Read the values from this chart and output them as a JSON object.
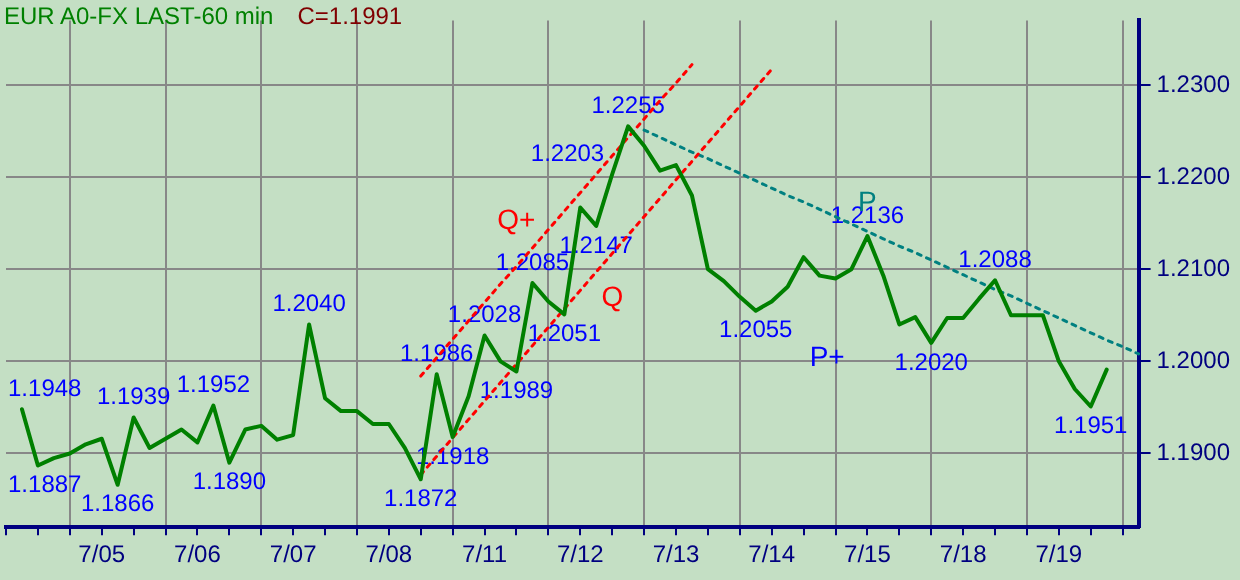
{
  "chart_data": {
    "type": "line",
    "title": "EUR A0-FX LAST-60 min",
    "subtitle": "C=1.1991",
    "categories": [
      null,
      null,
      null,
      null,
      null,
      null,
      "7/05",
      null,
      null,
      null,
      null,
      null,
      "7/06",
      null,
      null,
      null,
      null,
      null,
      "7/07",
      null,
      null,
      null,
      null,
      null,
      "7/08",
      null,
      null,
      null,
      null,
      null,
      "7/11",
      null,
      null,
      null,
      null,
      null,
      "7/12",
      null,
      null,
      null,
      null,
      null,
      "7/13",
      null,
      null,
      null,
      null,
      null,
      "7/14",
      null,
      null,
      null,
      null,
      null,
      "7/15",
      null,
      null,
      null,
      null,
      null,
      "7/18",
      null,
      null,
      null,
      null,
      null,
      "7/19",
      null,
      null,
      null,
      null,
      null
    ],
    "series": [
      {
        "type": "line",
        "color": "#008000",
        "values": [
          null,
          1.1948,
          1.1887,
          1.1895,
          1.19,
          1.191,
          1.1916,
          1.1866,
          1.1939,
          1.1906,
          1.1916,
          1.1926,
          1.1912,
          1.1952,
          1.189,
          1.1926,
          1.193,
          1.1915,
          1.192,
          1.204,
          1.196,
          1.1946,
          1.1946,
          1.1932,
          1.1932,
          1.1906,
          1.1872,
          1.1986,
          1.1918,
          1.1962,
          1.2028,
          1.2,
          1.1989,
          1.2085,
          1.2065,
          1.2051,
          1.2167,
          1.2147,
          1.2203,
          1.2255,
          1.2234,
          1.2207,
          1.2213,
          1.218,
          1.21,
          1.2087,
          1.207,
          1.2055,
          1.2065,
          1.2081,
          1.2113,
          1.2093,
          1.209,
          1.21,
          1.2136,
          1.2093,
          1.204,
          1.2048,
          1.202,
          1.2047,
          1.2047,
          1.2068,
          1.2088,
          1.205,
          1.205,
          1.205,
          1.2,
          1.197,
          1.1951,
          1.1991,
          null,
          null
        ],
        "value_labels": [
          null,
          "1.1948",
          "1.1887",
          null,
          null,
          null,
          null,
          "1.1866",
          "1.1939",
          null,
          null,
          null,
          null,
          "1.1952",
          "1.1890",
          null,
          null,
          null,
          null,
          "1.2040",
          null,
          null,
          null,
          null,
          null,
          null,
          "1.1872",
          "1.1986",
          "1.1918",
          null,
          "1.2028",
          null,
          "1.1989",
          "1.2085",
          null,
          "1.2051",
          null,
          "1.2147",
          "1.2203",
          "1.2255",
          null,
          null,
          null,
          null,
          null,
          null,
          null,
          "1.2055",
          null,
          null,
          null,
          null,
          null,
          null,
          "1.2136",
          null,
          null,
          null,
          "1.2020",
          null,
          null,
          null,
          "1.2088",
          null,
          null,
          null,
          null,
          null,
          "1.1951",
          null,
          null,
          null
        ]
      },
      {
        "type": "line",
        "name": "Q+",
        "color": "#ff0000",
        "line_style": "dotted",
        "values": [
          null,
          null,
          null,
          null,
          null,
          null,
          null,
          null,
          null,
          null,
          null,
          null,
          null,
          null,
          null,
          null,
          null,
          null,
          null,
          null,
          null,
          null,
          null,
          null,
          null,
          null,
          1.1984,
          1.2004,
          1.2024,
          1.2044,
          1.2064,
          1.2084,
          1.2103,
          1.2123,
          1.2143,
          1.2163,
          1.2183,
          1.2203,
          1.2223,
          1.2243,
          1.2263,
          1.2283,
          1.2302,
          1.2322,
          null,
          null,
          null,
          null,
          null,
          null,
          null,
          null,
          null,
          null,
          null,
          null,
          null,
          null,
          null,
          null,
          null,
          null,
          null,
          null,
          null,
          null,
          null,
          null,
          null,
          null,
          null,
          null
        ]
      },
      {
        "type": "line",
        "name": "Q",
        "color": "#ff0000",
        "line_style": "dotted",
        "values": [
          null,
          null,
          null,
          null,
          null,
          null,
          null,
          null,
          null,
          null,
          null,
          null,
          null,
          null,
          null,
          null,
          null,
          null,
          null,
          null,
          null,
          null,
          null,
          null,
          null,
          null,
          1.1877,
          1.1897,
          1.1917,
          1.1937,
          1.1957,
          1.1977,
          1.1997,
          1.2017,
          1.2037,
          1.2057,
          1.2077,
          1.2097,
          1.2117,
          1.2137,
          1.2157,
          1.2177,
          1.2197,
          1.2217,
          1.2237,
          1.2257,
          1.2277,
          1.2297,
          1.2317,
          null,
          null,
          null,
          null,
          null,
          null,
          null,
          null,
          null,
          null,
          null,
          null,
          null,
          null,
          null,
          null,
          null,
          null,
          null,
          null,
          null,
          null,
          null
        ]
      },
      {
        "type": "line",
        "name": "P",
        "color": "#008080",
        "line_style": "dotted",
        "values": [
          null,
          null,
          null,
          null,
          null,
          null,
          null,
          null,
          null,
          null,
          null,
          null,
          null,
          null,
          null,
          null,
          null,
          null,
          null,
          null,
          null,
          null,
          null,
          null,
          null,
          null,
          null,
          null,
          null,
          null,
          null,
          null,
          null,
          null,
          null,
          null,
          null,
          null,
          null,
          null,
          1.2251,
          1.2243,
          1.2235,
          1.2227,
          1.222,
          1.2212,
          1.2204,
          1.2196,
          1.2188,
          1.218,
          1.2173,
          1.2165,
          1.2157,
          1.2149,
          1.2141,
          1.2133,
          1.2125,
          1.2118,
          1.211,
          1.2102,
          1.2094,
          1.2086,
          1.2078,
          1.2071,
          1.2063,
          1.2055,
          1.2047,
          1.2039,
          1.2031,
          1.2023,
          1.2016,
          1.2008
        ]
      }
    ],
    "annotations": [
      "P+"
    ],
    "ylim": [
      1.182,
      1.237
    ],
    "yticks": [
      {
        "value": 1.19,
        "label": "1.1900"
      },
      {
        "value": 1.2,
        "label": "1.2000"
      },
      {
        "value": 1.21,
        "label": "1.2100"
      },
      {
        "value": 1.22,
        "label": "1.2200"
      },
      {
        "value": 1.23,
        "label": "1.2300"
      }
    ],
    "grid": true,
    "legend": false,
    "marker": "none",
    "line_style": "solid"
  }
}
